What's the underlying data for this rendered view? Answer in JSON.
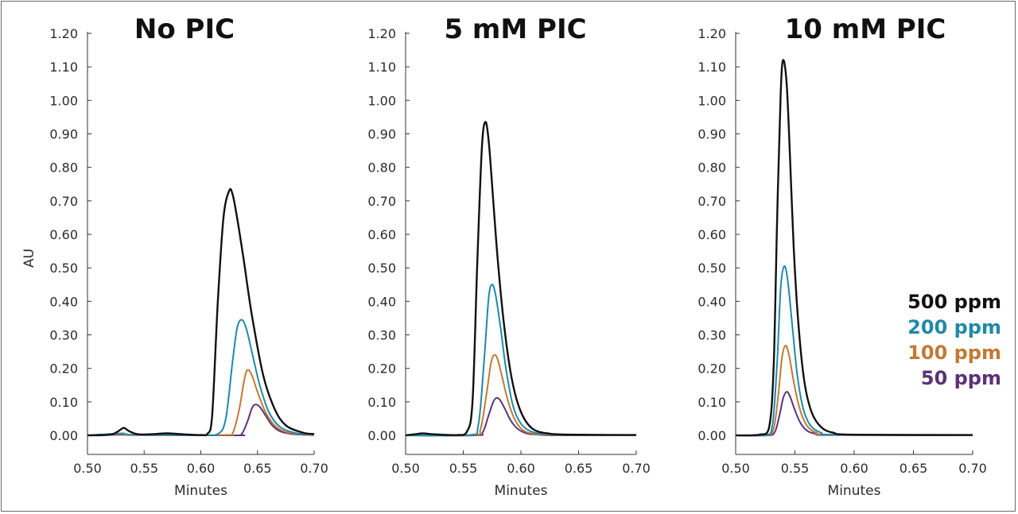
{
  "chart_data": [
    {
      "type": "line",
      "title": "No PIC",
      "xlabel": "Minutes",
      "ylabel": "AU",
      "xlim": [
        0.5,
        0.7
      ],
      "ylim": [
        0,
        1.2
      ],
      "xticks": [
        "0.50",
        "0.55",
        "0.60",
        "0.65",
        "0.70"
      ],
      "yticks": [
        "0.00",
        "0.10",
        "0.20",
        "0.30",
        "0.40",
        "0.50",
        "0.60",
        "0.70",
        "0.80",
        "0.90",
        "1.00",
        "1.10",
        "1.20"
      ],
      "series": [
        {
          "name": "500 ppm",
          "color": "#111111",
          "x": [
            0.5,
            0.52,
            0.527,
            0.532,
            0.537,
            0.545,
            0.56,
            0.57,
            0.585,
            0.6,
            0.606,
            0.61,
            0.615,
            0.62,
            0.625,
            0.628,
            0.632,
            0.638,
            0.645,
            0.655,
            0.665,
            0.675,
            0.69,
            0.7
          ],
          "y": [
            0.0,
            0.002,
            0.012,
            0.022,
            0.012,
            0.003,
            0.004,
            0.006,
            0.003,
            0.001,
            0.005,
            0.06,
            0.4,
            0.65,
            0.73,
            0.72,
            0.65,
            0.52,
            0.36,
            0.18,
            0.08,
            0.03,
            0.008,
            0.004
          ]
        },
        {
          "name": "200 ppm",
          "color": "#1f8aa6",
          "x": [
            0.5,
            0.53,
            0.54,
            0.6,
            0.615,
            0.622,
            0.628,
            0.632,
            0.636,
            0.64,
            0.645,
            0.652,
            0.66,
            0.67,
            0.685,
            0.7
          ],
          "y": [
            0.0,
            0.006,
            0.002,
            0.001,
            0.004,
            0.05,
            0.22,
            0.32,
            0.345,
            0.32,
            0.25,
            0.15,
            0.07,
            0.025,
            0.006,
            0.003
          ]
        },
        {
          "name": "100 ppm",
          "color": "#c07a35",
          "x": [
            0.5,
            0.53,
            0.54,
            0.62,
            0.628,
            0.634,
            0.638,
            0.641,
            0.645,
            0.65,
            0.657,
            0.665,
            0.675,
            0.69,
            0.7
          ],
          "y": [
            0.0,
            0.004,
            0.001,
            0.001,
            0.006,
            0.08,
            0.16,
            0.195,
            0.18,
            0.13,
            0.07,
            0.03,
            0.01,
            0.003,
            0.002
          ]
        },
        {
          "name": "50 ppm",
          "color": "#5b3276",
          "x": [
            0.5,
            0.53,
            0.54,
            0.63,
            0.636,
            0.641,
            0.645,
            0.648,
            0.652,
            0.657,
            0.663,
            0.67,
            0.68,
            0.69,
            0.7
          ],
          "y": [
            0.0,
            0.002,
            0.001,
            0.0,
            0.004,
            0.04,
            0.08,
            0.092,
            0.085,
            0.06,
            0.03,
            0.012,
            0.004,
            0.002,
            0.001
          ]
        }
      ]
    },
    {
      "type": "line",
      "title": "5 mM PIC",
      "xlabel": "Minutes",
      "ylabel": "",
      "xlim": [
        0.5,
        0.7
      ],
      "ylim": [
        0,
        1.2
      ],
      "xticks": [
        "0.50",
        "0.55",
        "0.60",
        "0.65",
        "0.70"
      ],
      "yticks": [
        "0.00",
        "0.10",
        "0.20",
        "0.30",
        "0.40",
        "0.50",
        "0.60",
        "0.70",
        "0.80",
        "0.90",
        "1.00",
        "1.10",
        "1.20"
      ],
      "series": [
        {
          "name": "500 ppm",
          "color": "#111111",
          "x": [
            0.5,
            0.51,
            0.515,
            0.525,
            0.545,
            0.553,
            0.558,
            0.562,
            0.566,
            0.569,
            0.572,
            0.576,
            0.58,
            0.585,
            0.592,
            0.6,
            0.61,
            0.625,
            0.65,
            0.7
          ],
          "y": [
            0.0,
            0.004,
            0.006,
            0.003,
            0.001,
            0.01,
            0.1,
            0.5,
            0.85,
            0.935,
            0.88,
            0.7,
            0.52,
            0.34,
            0.17,
            0.07,
            0.02,
            0.005,
            0.002,
            0.001
          ]
        },
        {
          "name": "200 ppm",
          "color": "#1f8aa6",
          "x": [
            0.5,
            0.555,
            0.563,
            0.568,
            0.572,
            0.575,
            0.578,
            0.582,
            0.587,
            0.593,
            0.6,
            0.61,
            0.625,
            0.65,
            0.7
          ],
          "y": [
            0.0,
            0.001,
            0.03,
            0.22,
            0.41,
            0.45,
            0.42,
            0.33,
            0.2,
            0.09,
            0.035,
            0.01,
            0.003,
            0.001,
            0.001
          ]
        },
        {
          "name": "100 ppm",
          "color": "#c07a35",
          "x": [
            0.5,
            0.558,
            0.565,
            0.57,
            0.574,
            0.577,
            0.58,
            0.584,
            0.589,
            0.595,
            0.602,
            0.612,
            0.63,
            0.7
          ],
          "y": [
            0.0,
            0.001,
            0.02,
            0.12,
            0.215,
            0.24,
            0.225,
            0.17,
            0.1,
            0.045,
            0.015,
            0.004,
            0.001,
            0.0
          ]
        },
        {
          "name": "50 ppm",
          "color": "#5b3276",
          "x": [
            0.5,
            0.56,
            0.567,
            0.572,
            0.576,
            0.579,
            0.582,
            0.586,
            0.591,
            0.597,
            0.605,
            0.615,
            0.63,
            0.7
          ],
          "y": [
            0.0,
            0.0,
            0.01,
            0.06,
            0.1,
            0.112,
            0.105,
            0.08,
            0.045,
            0.02,
            0.006,
            0.002,
            0.0,
            0.0
          ]
        }
      ]
    },
    {
      "type": "line",
      "title": "10 mM PIC",
      "xlabel": "Minutes",
      "ylabel": "",
      "xlim": [
        0.5,
        0.7
      ],
      "ylim": [
        0,
        1.2
      ],
      "xticks": [
        "0.50",
        "0.55",
        "0.60",
        "0.65",
        "0.70"
      ],
      "yticks": [
        "0.00",
        "0.10",
        "0.20",
        "0.30",
        "0.40",
        "0.50",
        "0.60",
        "0.70",
        "0.80",
        "0.90",
        "1.00",
        "1.10",
        "1.20"
      ],
      "series": [
        {
          "name": "500 ppm",
          "color": "#111111",
          "x": [
            0.5,
            0.52,
            0.528,
            0.532,
            0.535,
            0.538,
            0.54,
            0.543,
            0.546,
            0.549,
            0.553,
            0.558,
            0.564,
            0.572,
            0.582,
            0.6,
            0.7
          ],
          "y": [
            0.0,
            0.002,
            0.02,
            0.2,
            0.65,
            1.02,
            1.12,
            1.05,
            0.82,
            0.56,
            0.33,
            0.16,
            0.07,
            0.025,
            0.008,
            0.002,
            0.001
          ]
        },
        {
          "name": "200 ppm",
          "color": "#1f8aa6",
          "x": [
            0.5,
            0.525,
            0.531,
            0.535,
            0.538,
            0.541,
            0.544,
            0.548,
            0.552,
            0.557,
            0.563,
            0.572,
            0.585,
            0.7
          ],
          "y": [
            0.0,
            0.001,
            0.03,
            0.22,
            0.44,
            0.505,
            0.46,
            0.32,
            0.18,
            0.08,
            0.03,
            0.008,
            0.002,
            0.001
          ]
        },
        {
          "name": "100 ppm",
          "color": "#c07a35",
          "x": [
            0.5,
            0.526,
            0.532,
            0.536,
            0.539,
            0.542,
            0.545,
            0.549,
            0.554,
            0.56,
            0.568,
            0.58,
            0.7
          ],
          "y": [
            0.0,
            0.001,
            0.02,
            0.12,
            0.23,
            0.268,
            0.24,
            0.16,
            0.08,
            0.03,
            0.008,
            0.002,
            0.0
          ]
        },
        {
          "name": "50 ppm",
          "color": "#5b3276",
          "x": [
            0.5,
            0.527,
            0.533,
            0.537,
            0.54,
            0.543,
            0.546,
            0.55,
            0.555,
            0.561,
            0.57,
            0.58,
            0.7
          ],
          "y": [
            0.0,
            0.0,
            0.01,
            0.06,
            0.11,
            0.13,
            0.115,
            0.075,
            0.035,
            0.012,
            0.003,
            0.001,
            0.0
          ]
        }
      ]
    }
  ],
  "legend": [
    {
      "label": "500 ppm",
      "color": "#111111"
    },
    {
      "label": "200 ppm",
      "color": "#1f8aa6"
    },
    {
      "label": "100 ppm",
      "color": "#c07a35"
    },
    {
      "label": "50 ppm",
      "color": "#5b3276"
    }
  ]
}
